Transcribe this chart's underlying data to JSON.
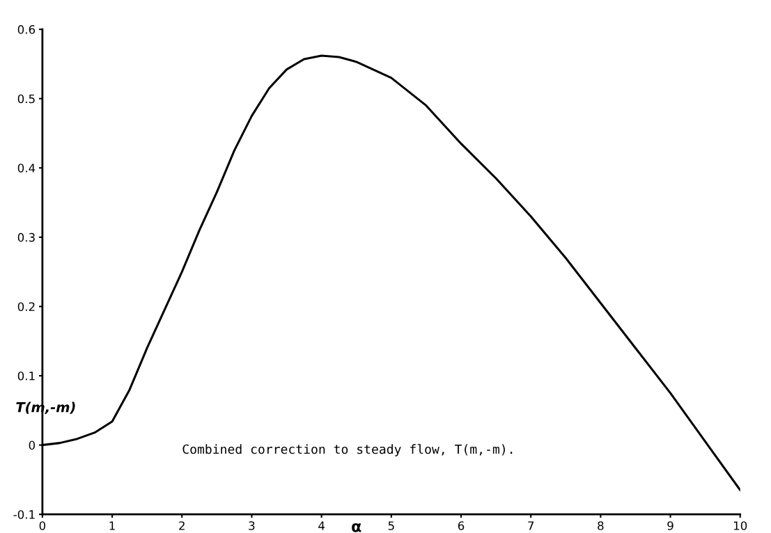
{
  "chart_data": {
    "type": "line",
    "xlabel": "α",
    "ylabel": "T(m,-m)",
    "annotations": [
      "Combined correction to steady flow, T(m,-m)."
    ],
    "x": [
      0,
      0.25,
      0.5,
      0.75,
      1,
      1.25,
      1.5,
      1.75,
      2,
      2.25,
      2.5,
      2.75,
      3,
      3.25,
      3.5,
      3.75,
      4,
      4.25,
      4.5,
      5,
      5.5,
      6,
      6.5,
      7,
      7.5,
      8,
      8.5,
      9,
      9.5,
      10
    ],
    "series": [
      {
        "color": "#000000",
        "values": [
          0,
          0.003,
          0.009,
          0.018,
          0.034,
          0.08,
          0.14,
          0.195,
          0.25,
          0.31,
          0.365,
          0.425,
          0.475,
          0.515,
          0.542,
          0.557,
          0.562,
          0.56,
          0.553,
          0.53,
          0.49,
          0.435,
          0.385,
          0.33,
          0.27,
          0.205,
          0.14,
          0.075,
          0.005,
          -0.065
        ]
      }
    ],
    "xlim": [
      0,
      10
    ],
    "ylim": [
      -0.1,
      0.6
    ],
    "xticks": [
      0,
      1,
      2,
      3,
      4,
      5,
      6,
      7,
      8,
      9,
      10
    ],
    "yticks": [
      -0.1,
      0,
      0.1,
      0.2,
      0.3,
      0.4,
      0.5,
      0.6
    ],
    "grid": false,
    "legend": false,
    "marker": "none",
    "line_style": "solid"
  }
}
